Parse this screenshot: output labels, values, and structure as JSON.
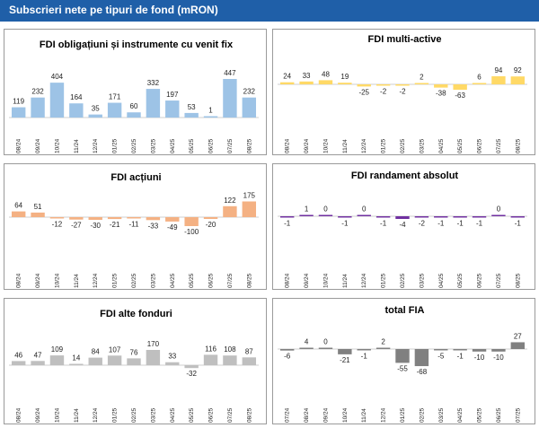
{
  "header": {
    "title": "Subscrieri nete pe tipuri de fond (mRON)"
  },
  "chart_data": [
    {
      "type": "bar",
      "title": "FDI obligațiuni și instrumente cu venit fix",
      "color": "#9dc3e6",
      "categories": [
        "08/24",
        "09/24",
        "10/24",
        "11/24",
        "12/24",
        "01/25",
        "02/25",
        "03/25",
        "04/25",
        "05/25",
        "06/25",
        "07/25",
        "08/25"
      ],
      "values": [
        119,
        232,
        404,
        164,
        35,
        171,
        60,
        332,
        197,
        53,
        1,
        447,
        232
      ]
    },
    {
      "type": "bar",
      "title": "FDI multi-active",
      "color": "#ffd966",
      "categories": [
        "08/24",
        "09/24",
        "10/24",
        "11/24",
        "12/24",
        "01/25",
        "02/25",
        "03/25",
        "04/25",
        "05/25",
        "06/25",
        "07/25",
        "08/25"
      ],
      "values": [
        24,
        33,
        48,
        19,
        -25,
        -2,
        -2,
        2,
        -38,
        -63,
        6,
        94,
        92
      ]
    },
    {
      "type": "bar",
      "title": "FDI acțiuni",
      "color": "#f4b183",
      "categories": [
        "08/24",
        "09/24",
        "10/24",
        "11/24",
        "12/24",
        "01/25",
        "02/25",
        "03/25",
        "04/25",
        "05/25",
        "06/25",
        "07/25",
        "08/25"
      ],
      "values": [
        64,
        51,
        -12,
        -27,
        -30,
        -21,
        -11,
        -33,
        -49,
        -100,
        -20,
        122,
        175
      ]
    },
    {
      "type": "bar",
      "title": "FDI randament absolut",
      "color": "#7030a0",
      "categories": [
        "08/24",
        "09/24",
        "10/24",
        "11/24",
        "12/24",
        "01/25",
        "02/25",
        "03/25",
        "04/25",
        "05/25",
        "06/25",
        "07/25",
        "08/25"
      ],
      "values": [
        -1,
        1,
        0,
        -1,
        0,
        -1,
        -4,
        -2,
        -1,
        -1,
        -1,
        0,
        -1
      ]
    },
    {
      "type": "bar",
      "title": "FDI alte fonduri",
      "color": "#bfbfbf",
      "categories": [
        "08/24",
        "09/24",
        "10/24",
        "11/24",
        "12/24",
        "01/25",
        "02/25",
        "03/25",
        "04/25",
        "05/25",
        "06/25",
        "07/25",
        "08/25"
      ],
      "values": [
        46,
        47,
        109,
        14,
        84,
        107,
        76,
        170,
        33,
        -32,
        116,
        108,
        87
      ]
    },
    {
      "type": "bar",
      "title": "total FIA",
      "color": "#808080",
      "categories": [
        "07/24",
        "08/24",
        "09/24",
        "10/24",
        "11/24",
        "12/24",
        "01/25",
        "02/25",
        "03/25",
        "04/25",
        "05/25",
        "06/25",
        "07/25"
      ],
      "values": [
        -6,
        4,
        0,
        -21,
        -1,
        2,
        -55,
        -68,
        -5,
        -1,
        -10,
        -10,
        27
      ]
    }
  ]
}
